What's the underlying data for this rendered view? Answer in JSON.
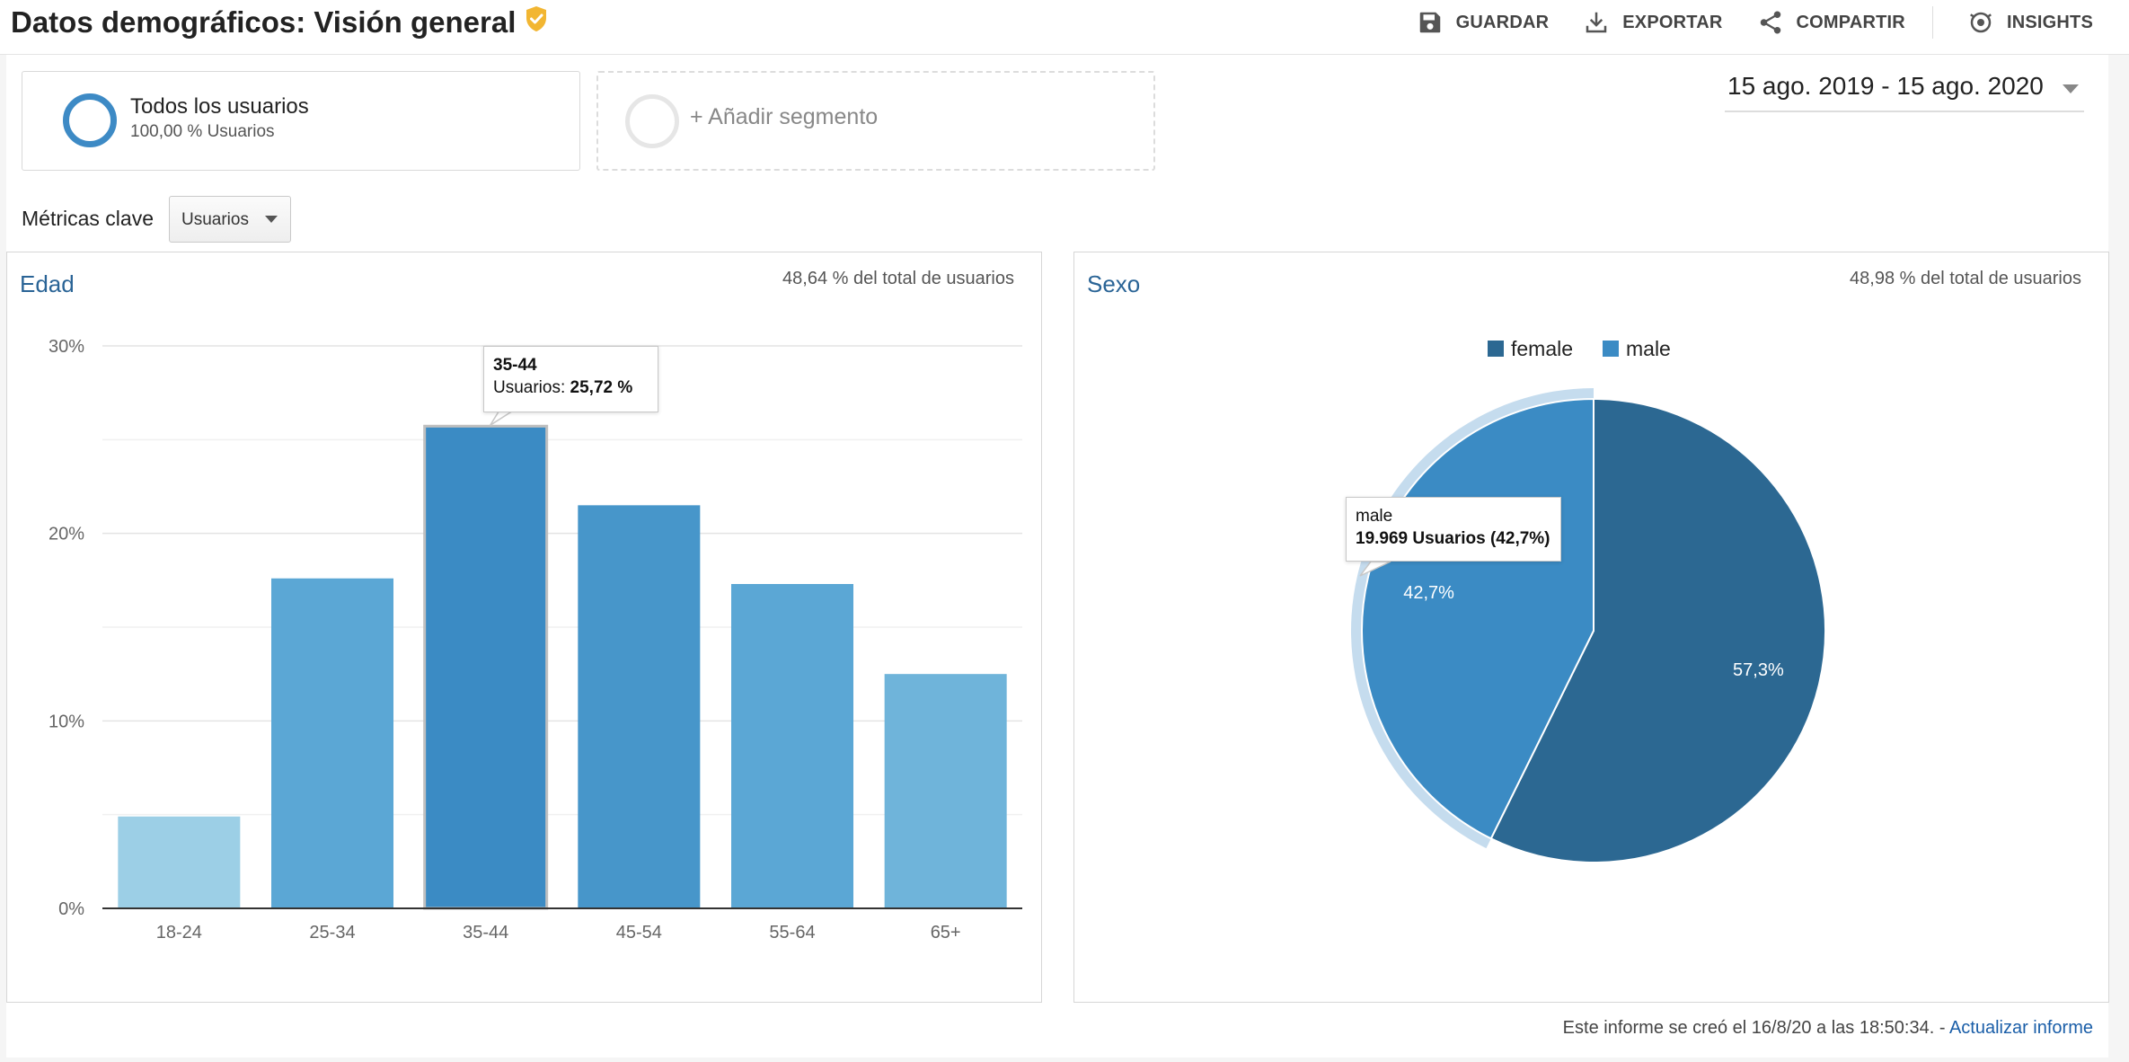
{
  "header": {
    "title": "Datos demográficos: Visión general",
    "actions": [
      {
        "label": "GUARDAR",
        "icon": "save-icon"
      },
      {
        "label": "EXPORTAR",
        "icon": "download-icon"
      },
      {
        "label": "COMPARTIR",
        "icon": "share-icon"
      },
      {
        "label": "INSIGHTS",
        "icon": "insights-icon"
      }
    ]
  },
  "segments": {
    "active": {
      "name": "Todos los usuarios",
      "sub": "100,00 % Usuarios"
    },
    "add_label": "+ Añadir segmento"
  },
  "date_range": "15 ago. 2019 - 15 ago. 2020",
  "metrics": {
    "label": "Métricas clave",
    "selected": "Usuarios"
  },
  "colors": {
    "accent": "#2a6496",
    "female": "#2c6892",
    "male": "#3b8bc4"
  },
  "age_panel": {
    "title": "Edad",
    "note": "48,64 % del total de usuarios",
    "tooltip": {
      "category": "35-44",
      "label": "Usuarios:",
      "value": "25,72 %"
    }
  },
  "gender_panel": {
    "title": "Sexo",
    "note": "48,98 % del total de usuarios",
    "tooltip": {
      "category": "male",
      "value": "19.969 Usuarios (42,7%)"
    }
  },
  "chart_data": [
    {
      "type": "bar",
      "title": "Edad",
      "categories": [
        "18-24",
        "25-34",
        "35-44",
        "45-54",
        "55-64",
        "65+"
      ],
      "values": [
        4.9,
        17.6,
        25.72,
        21.5,
        17.3,
        12.5
      ],
      "yticks": [
        "0%",
        "10%",
        "20%",
        "30%"
      ],
      "ylim": [
        0,
        30
      ],
      "colors": [
        "#9ccfe6",
        "#5ba7d5",
        "#3b8bc4",
        "#4796ca",
        "#5ba7d5",
        "#6fb4da"
      ],
      "highlighted": "35-44",
      "grid": true
    },
    {
      "type": "pie",
      "title": "Sexo",
      "labels": [
        "female",
        "male"
      ],
      "values": [
        57.3,
        42.7
      ],
      "value_labels": [
        "57,3%",
        "42,7%"
      ],
      "colors": [
        "#2c6892",
        "#3b8bc4"
      ],
      "highlighted": "male",
      "legend": "top"
    }
  ],
  "footer": {
    "text": "Este informe se creó el 16/8/20 a las 18:50:34. -",
    "link": "Actualizar informe"
  }
}
